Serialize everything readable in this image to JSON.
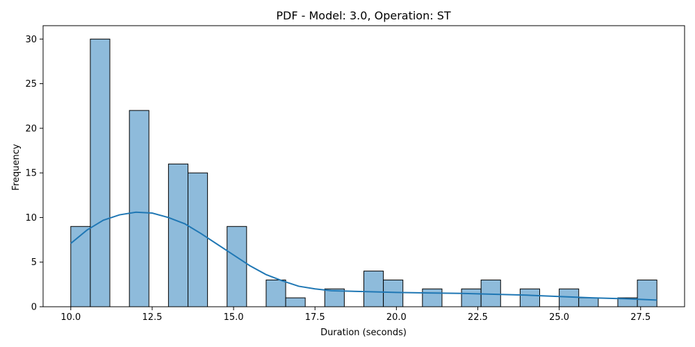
{
  "chart_data": {
    "type": "bar",
    "title": "PDF - Model: 3.0, Operation: ST",
    "xlabel": "Duration (seconds)",
    "ylabel": "Frequency",
    "xlim": [
      9.15,
      28.85
    ],
    "ylim": [
      0,
      31.5
    ],
    "xticks": [
      10.0,
      12.5,
      15.0,
      17.5,
      20.0,
      22.5,
      25.0,
      27.5
    ],
    "xtick_labels": [
      "10.0",
      "12.5",
      "15.0",
      "17.5",
      "20.0",
      "22.5",
      "25.0",
      "27.5"
    ],
    "yticks": [
      0,
      5,
      10,
      15,
      20,
      25,
      30
    ],
    "ytick_labels": [
      "0",
      "5",
      "10",
      "15",
      "20",
      "25",
      "30"
    ],
    "bin_start": 10.0,
    "bin_width": 0.6,
    "counts": [
      9,
      30,
      0,
      22,
      0,
      16,
      15,
      0,
      9,
      0,
      3,
      1,
      0,
      2,
      0,
      4,
      3,
      0,
      2,
      0,
      2,
      3,
      0,
      2,
      0,
      2,
      1,
      0,
      1,
      3
    ],
    "kde": {
      "x": [
        10.0,
        10.5,
        11.0,
        11.5,
        12.0,
        12.5,
        13.0,
        13.5,
        14.0,
        14.5,
        15.0,
        15.5,
        16.0,
        16.5,
        17.0,
        17.5,
        18.0,
        18.5,
        19.0,
        19.5,
        20.0,
        21.0,
        22.0,
        23.0,
        24.0,
        25.0,
        26.0,
        27.0,
        28.0
      ],
      "y": [
        7.1,
        8.6,
        9.7,
        10.3,
        10.6,
        10.5,
        10.0,
        9.3,
        8.2,
        7.0,
        5.8,
        4.6,
        3.6,
        2.9,
        2.3,
        2.0,
        1.8,
        1.75,
        1.7,
        1.65,
        1.6,
        1.55,
        1.5,
        1.4,
        1.3,
        1.15,
        1.0,
        0.9,
        0.75
      ]
    },
    "bar_color": "#8ebbdb",
    "edge_color": "#000000",
    "kde_color": "#1f77b4",
    "grid": false
  }
}
